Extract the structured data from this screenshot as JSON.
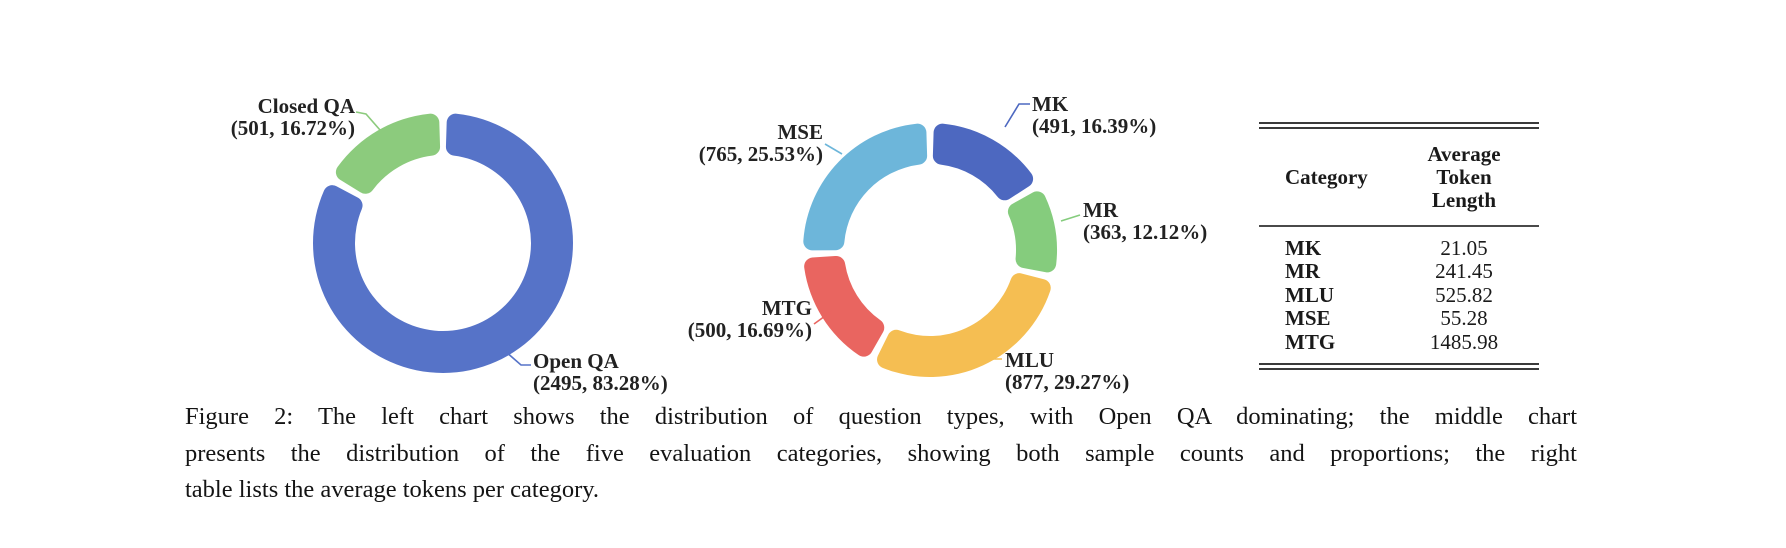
{
  "figure": {
    "caption_lines": [
      "Figure 2: The left chart shows the distribution of question types, with Open QA dominating; the middle chart",
      "presents the distribution of the five evaluation categories, showing both sample counts and proportions; the right",
      "table lists the average tokens per category."
    ]
  },
  "chart_data": [
    {
      "type": "donut",
      "legend_position": "outside-labels",
      "slices": [
        {
          "label": "Open QA",
          "count": 2495,
          "percent": 83.28,
          "detail": "(2495, 83.28%)",
          "color": "#5673C8"
        },
        {
          "label": "Closed QA",
          "count": 501,
          "percent": 16.72,
          "detail": "(501, 16.72%)",
          "color": "#8CCB7D"
        }
      ]
    },
    {
      "type": "donut",
      "legend_position": "outside-labels",
      "slices": [
        {
          "label": "MK",
          "count": 491,
          "percent": 16.39,
          "detail": "(491, 16.39%)",
          "color": "#4D68C0"
        },
        {
          "label": "MR",
          "count": 363,
          "percent": 12.12,
          "detail": "(363, 12.12%)",
          "color": "#85CC7D"
        },
        {
          "label": "MLU",
          "count": 877,
          "percent": 29.27,
          "detail": "(877, 29.27%)",
          "color": "#F5BE52"
        },
        {
          "label": "MTG",
          "count": 500,
          "percent": 16.69,
          "detail": "(500, 16.69%)",
          "color": "#E96560"
        },
        {
          "label": "MSE",
          "count": 765,
          "percent": 25.53,
          "detail": "(765, 25.53%)",
          "color": "#6DB6DA"
        }
      ]
    }
  ],
  "table": {
    "headers": [
      "Category",
      "Average Token Length"
    ],
    "rows": [
      {
        "category": "MK",
        "value": "21.05"
      },
      {
        "category": "MR",
        "value": "241.45"
      },
      {
        "category": "MLU",
        "value": "525.82"
      },
      {
        "category": "MSE",
        "value": "55.28"
      },
      {
        "category": "MTG",
        "value": "1485.98"
      }
    ]
  }
}
